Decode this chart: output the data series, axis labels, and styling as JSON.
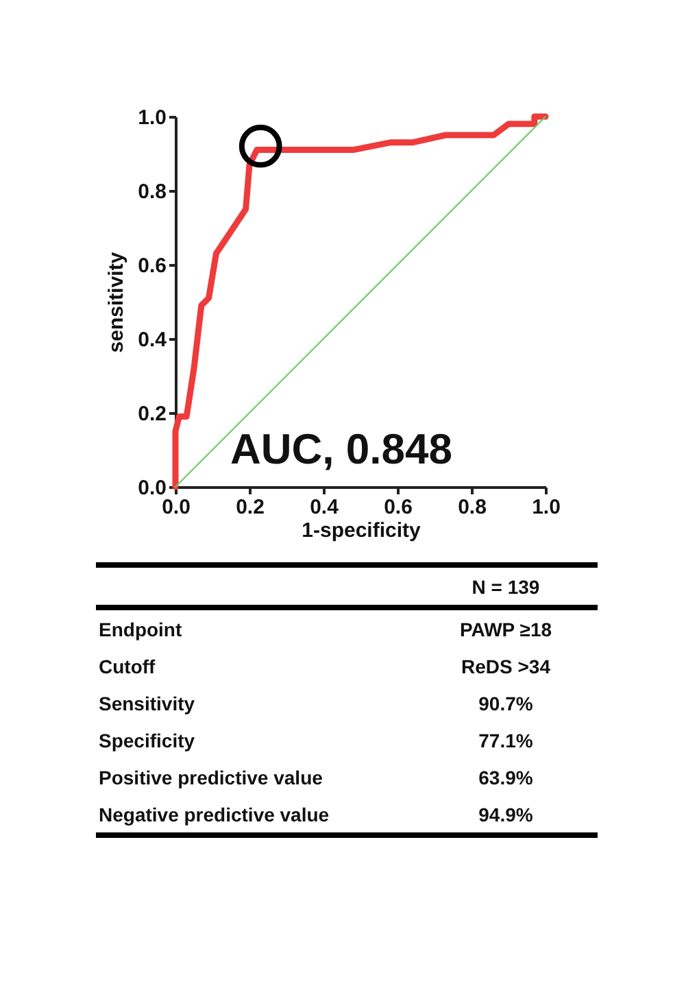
{
  "chart_data": {
    "type": "line",
    "xlabel": "1-specificity",
    "ylabel": "sensitivity",
    "xlim": [
      0,
      1
    ],
    "ylim": [
      0,
      1
    ],
    "xticks": [
      {
        "value": 0,
        "label": "0.0"
      },
      0.2,
      0.4,
      0.6,
      0.8,
      {
        "value": 1,
        "label": "1.0"
      }
    ],
    "yticks": [
      {
        "value": 0,
        "label": "0.0"
      },
      0.2,
      0.4,
      0.6,
      0.8,
      {
        "value": 1,
        "label": "1.0"
      }
    ],
    "grid": false,
    "series": [
      {
        "type": "line",
        "color": "#ee3b3b",
        "x": [
          0,
          0,
          0.01,
          0.03,
          0.05,
          0.07,
          0.09,
          0.11,
          0.15,
          0.19,
          0.2,
          0.21,
          0.22,
          0.48,
          0.58,
          0.64,
          0.73,
          0.86,
          0.9,
          0.97,
          0.97,
          1
        ],
        "values": [
          0,
          0.15,
          0.19,
          0.19,
          0.32,
          0.49,
          0.51,
          0.63,
          0.69,
          0.75,
          0.87,
          0.89,
          0.91,
          0.91,
          0.93,
          0.93,
          0.95,
          0.95,
          0.98,
          0.98,
          1,
          1
        ]
      },
      {
        "type": "line",
        "color": "#66cc66",
        "x": [
          0,
          1
        ],
        "values": [
          0,
          1
        ]
      },
      {
        "type": "scatter",
        "color": "#000000",
        "x": [
          0.23
        ],
        "values": [
          0.92
        ]
      }
    ],
    "annotations": [
      "AUC, 0.848",
      "N = 139",
      "Endpoint",
      "PAWP ≥18",
      "Cutoff",
      "ReDS >34",
      "Sensitivity",
      "90.7%",
      "Specificity",
      "77.1%",
      "Positive predictive value",
      "63.9%",
      "Negative predictive value",
      "94.9%"
    ]
  }
}
